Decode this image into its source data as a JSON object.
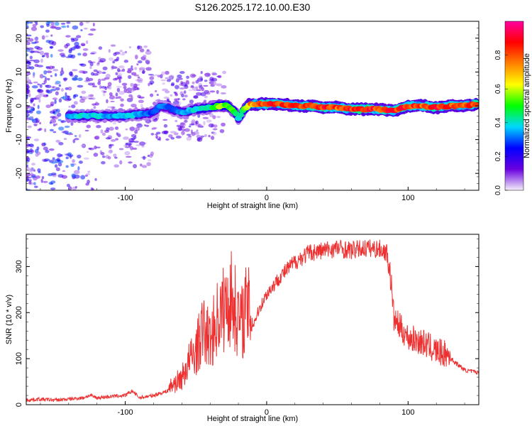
{
  "chart_data": [
    {
      "type": "heatmap",
      "title": "S126.2025.172.10.00.E30",
      "xlabel": "Height of straight line (km)",
      "ylabel": "Frequency (Hz)",
      "xlim": [
        -170,
        150
      ],
      "ylim": [
        -25,
        25
      ],
      "x_ticks": [
        -100,
        0,
        100
      ],
      "y_ticks": [
        -20,
        -10,
        0,
        10,
        20
      ],
      "colorbar": {
        "label": "Normalized spectral amplitude",
        "range": [
          0.0,
          1.0
        ],
        "ticks": [
          "0.0",
          "0.2",
          "0.4",
          "0.6",
          "0.8"
        ],
        "colors": [
          "#f4f0fa",
          "#6a00e0",
          "#0000ff",
          "#00d8ff",
          "#00ff00",
          "#ffff00",
          "#ff8000",
          "#ff0000",
          "#ff00a0"
        ]
      },
      "ridge": {
        "x": [
          -140,
          -130,
          -120,
          -110,
          -100,
          -90,
          -80,
          -75,
          -70,
          -60,
          -50,
          -40,
          -32,
          -28,
          -22,
          -20,
          -16,
          -12,
          -5,
          0,
          10,
          20,
          30,
          40,
          50,
          60,
          70,
          80,
          90,
          100,
          110,
          120,
          130,
          140,
          148
        ],
        "y": [
          -3,
          -3,
          -3,
          -3,
          -3,
          -2.5,
          -2,
          0,
          -0.5,
          -2,
          -1,
          -0.5,
          0,
          0,
          -2,
          -4,
          -1,
          0.5,
          0.5,
          0.5,
          0.5,
          0,
          0,
          -0.5,
          -0.5,
          -1,
          -1,
          -1,
          -1.5,
          0,
          0,
          -0.5,
          0,
          0,
          0.5
        ],
        "amplitude": [
          0.35,
          0.4,
          0.4,
          0.35,
          0.4,
          0.35,
          0.3,
          0.35,
          0.3,
          0.35,
          0.4,
          0.45,
          0.6,
          0.55,
          0.5,
          0.4,
          0.55,
          0.75,
          0.85,
          0.9,
          0.9,
          0.85,
          0.9,
          0.9,
          0.85,
          0.9,
          0.95,
          0.85,
          0.9,
          0.9,
          0.85,
          0.9,
          0.85,
          0.85,
          0.9
        ]
      }
    },
    {
      "type": "line",
      "xlabel": "Height of straight line (km)",
      "ylabel": "SNR (10 * v/v)",
      "xlim": [
        -170,
        150
      ],
      "ylim": [
        0,
        370
      ],
      "x_ticks": [
        -100,
        0,
        100
      ],
      "y_ticks": [
        0,
        100,
        200,
        300
      ],
      "color": "#ee3030",
      "x": [
        -170,
        -160,
        -150,
        -140,
        -130,
        -125,
        -120,
        -110,
        -100,
        -95,
        -90,
        -80,
        -70,
        -60,
        -55,
        -50,
        -45,
        -40,
        -35,
        -30,
        -25,
        -21,
        -18,
        -15,
        -10,
        -5,
        0,
        5,
        10,
        20,
        30,
        40,
        50,
        60,
        70,
        80,
        85,
        88,
        90,
        95,
        100,
        110,
        120,
        130,
        140,
        150
      ],
      "y": [
        10,
        12,
        10,
        12,
        15,
        20,
        15,
        18,
        20,
        30,
        15,
        20,
        30,
        50,
        80,
        100,
        140,
        120,
        160,
        180,
        200,
        170,
        150,
        180,
        170,
        210,
        240,
        260,
        280,
        310,
        330,
        335,
        340,
        335,
        340,
        338,
        330,
        260,
        180,
        160,
        140,
        130,
        110,
        100,
        75,
        70
      ]
    }
  ]
}
